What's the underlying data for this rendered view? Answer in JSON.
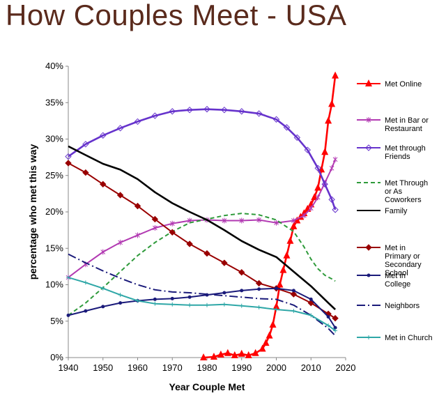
{
  "slide": {
    "title": "How Couples Meet - USA"
  },
  "chart_data": {
    "type": "line",
    "xlabel": "Year Couple Met",
    "ylabel": "percentage who met this way",
    "xlim": [
      1940,
      2020
    ],
    "ylim": [
      0,
      40
    ],
    "xticks": [
      "1940",
      "1950",
      "1960",
      "1970",
      "1980",
      "1990",
      "2000",
      "2010",
      "2020"
    ],
    "yticks": [
      "0%",
      "5%",
      "10%",
      "15%",
      "20%",
      "25%",
      "30%",
      "35%",
      "40%"
    ],
    "grid": false,
    "legend_position": "right",
    "series": [
      {
        "name": "Met Online",
        "color": "#ff0000",
        "line_style": "solid",
        "marker": "triangle",
        "points": [
          [
            1979,
            0
          ],
          [
            1982,
            0.1
          ],
          [
            1984,
            0.4
          ],
          [
            1986,
            0.6
          ],
          [
            1988,
            0.3
          ],
          [
            1990,
            0.5
          ],
          [
            1992,
            0.3
          ],
          [
            1994,
            0.6
          ],
          [
            1996,
            1.2
          ],
          [
            1997,
            2.0
          ],
          [
            1998,
            3.0
          ],
          [
            1999,
            4.5
          ],
          [
            2000,
            7.0
          ],
          [
            2001,
            10.0
          ],
          [
            2002,
            12.0
          ],
          [
            2003,
            14.0
          ],
          [
            2004,
            16.0
          ],
          [
            2005,
            18.0
          ],
          [
            2006,
            18.8
          ],
          [
            2007,
            19.3
          ],
          [
            2008,
            19.8
          ],
          [
            2009,
            20.4
          ],
          [
            2010,
            21.0
          ],
          [
            2011,
            22.0
          ],
          [
            2012,
            23.3
          ],
          [
            2013,
            25.8
          ],
          [
            2014,
            28.2
          ],
          [
            2015,
            32.5
          ],
          [
            2016,
            34.8
          ],
          [
            2017,
            38.7
          ]
        ]
      },
      {
        "name": "Met in Bar or Restaurant",
        "color": "#b23ab2",
        "line_style": "solid",
        "marker": "star",
        "points": [
          [
            1940,
            11.0
          ],
          [
            1945,
            12.8
          ],
          [
            1950,
            14.5
          ],
          [
            1955,
            15.8
          ],
          [
            1960,
            16.8
          ],
          [
            1965,
            17.8
          ],
          [
            1970,
            18.4
          ],
          [
            1975,
            18.8
          ],
          [
            1980,
            18.9
          ],
          [
            1985,
            18.8
          ],
          [
            1990,
            18.8
          ],
          [
            1995,
            18.9
          ],
          [
            2000,
            18.5
          ],
          [
            2005,
            18.8
          ],
          [
            2008,
            19.5
          ],
          [
            2010,
            20.5
          ],
          [
            2012,
            22.0
          ],
          [
            2014,
            24.0
          ],
          [
            2016,
            26.0
          ],
          [
            2017,
            27.2
          ]
        ]
      },
      {
        "name": "Met through Friends",
        "color": "#6633cc",
        "line_style": "solid",
        "marker": "diamond",
        "points": [
          [
            1940,
            27.6
          ],
          [
            1945,
            29.3
          ],
          [
            1950,
            30.5
          ],
          [
            1955,
            31.5
          ],
          [
            1960,
            32.4
          ],
          [
            1965,
            33.2
          ],
          [
            1970,
            33.8
          ],
          [
            1975,
            34.0
          ],
          [
            1980,
            34.1
          ],
          [
            1985,
            34.0
          ],
          [
            1990,
            33.8
          ],
          [
            1995,
            33.5
          ],
          [
            2000,
            32.7
          ],
          [
            2003,
            31.6
          ],
          [
            2006,
            30.2
          ],
          [
            2009,
            28.5
          ],
          [
            2012,
            26.0
          ],
          [
            2014,
            23.8
          ],
          [
            2016,
            21.7
          ],
          [
            2017,
            20.3
          ]
        ]
      },
      {
        "name": "Met Through or As Coworkers",
        "color": "#2e9a3a",
        "line_style": "dashed",
        "marker": "none",
        "points": [
          [
            1940,
            5.8
          ],
          [
            1945,
            7.5
          ],
          [
            1950,
            9.6
          ],
          [
            1955,
            11.8
          ],
          [
            1960,
            14.0
          ],
          [
            1965,
            15.8
          ],
          [
            1970,
            17.3
          ],
          [
            1975,
            18.5
          ],
          [
            1980,
            19.0
          ],
          [
            1985,
            19.5
          ],
          [
            1990,
            19.8
          ],
          [
            1995,
            19.6
          ],
          [
            2000,
            18.9
          ],
          [
            2005,
            17.3
          ],
          [
            2008,
            15.2
          ],
          [
            2010,
            13.5
          ],
          [
            2012,
            12.2
          ],
          [
            2014,
            11.3
          ],
          [
            2016,
            10.8
          ],
          [
            2017,
            10.5
          ]
        ]
      },
      {
        "name": "Family",
        "color": "#000000",
        "line_style": "solid",
        "marker": "none",
        "points": [
          [
            1940,
            29.0
          ],
          [
            1945,
            27.8
          ],
          [
            1950,
            26.6
          ],
          [
            1955,
            25.8
          ],
          [
            1960,
            24.5
          ],
          [
            1965,
            22.7
          ],
          [
            1970,
            21.2
          ],
          [
            1975,
            20.0
          ],
          [
            1980,
            18.9
          ],
          [
            1985,
            17.5
          ],
          [
            1990,
            16.0
          ],
          [
            1995,
            14.8
          ],
          [
            2000,
            13.8
          ],
          [
            2005,
            11.8
          ],
          [
            2010,
            9.8
          ],
          [
            2015,
            7.5
          ],
          [
            2017,
            6.6
          ]
        ]
      },
      {
        "name": "Met in Primary or Secondary School",
        "color": "#990000",
        "line_style": "solid",
        "marker": "diamond",
        "points": [
          [
            1940,
            26.7
          ],
          [
            1945,
            25.4
          ],
          [
            1950,
            23.8
          ],
          [
            1955,
            22.3
          ],
          [
            1960,
            20.8
          ],
          [
            1965,
            19.0
          ],
          [
            1970,
            17.2
          ],
          [
            1975,
            15.6
          ],
          [
            1980,
            14.3
          ],
          [
            1985,
            13.0
          ],
          [
            1990,
            11.7
          ],
          [
            1995,
            10.2
          ],
          [
            2000,
            9.5
          ],
          [
            2005,
            8.7
          ],
          [
            2010,
            7.5
          ],
          [
            2015,
            6.0
          ],
          [
            2017,
            5.4
          ]
        ]
      },
      {
        "name": "Met in College",
        "color": "#1a1a7a",
        "line_style": "solid",
        "marker": "circle",
        "points": [
          [
            1940,
            5.8
          ],
          [
            1945,
            6.4
          ],
          [
            1950,
            7.0
          ],
          [
            1955,
            7.5
          ],
          [
            1960,
            7.8
          ],
          [
            1965,
            8.0
          ],
          [
            1970,
            8.1
          ],
          [
            1975,
            8.3
          ],
          [
            1980,
            8.6
          ],
          [
            1985,
            8.9
          ],
          [
            1990,
            9.2
          ],
          [
            1995,
            9.4
          ],
          [
            2000,
            9.5
          ],
          [
            2005,
            9.2
          ],
          [
            2010,
            8.0
          ],
          [
            2015,
            5.6
          ],
          [
            2017,
            4.1
          ]
        ]
      },
      {
        "name": "Neighbors",
        "color": "#1a1a7a",
        "line_style": "dashdot",
        "marker": "none",
        "points": [
          [
            1940,
            14.2
          ],
          [
            1945,
            13.0
          ],
          [
            1950,
            11.9
          ],
          [
            1955,
            10.9
          ],
          [
            1960,
            10.0
          ],
          [
            1965,
            9.3
          ],
          [
            1970,
            9.0
          ],
          [
            1975,
            8.9
          ],
          [
            1980,
            8.7
          ],
          [
            1985,
            8.5
          ],
          [
            1990,
            8.3
          ],
          [
            1995,
            8.1
          ],
          [
            2000,
            8.0
          ],
          [
            2005,
            7.2
          ],
          [
            2010,
            5.8
          ],
          [
            2015,
            4.0
          ],
          [
            2017,
            3.0
          ]
        ]
      },
      {
        "name": "Met in Church",
        "color": "#2ea7a7",
        "line_style": "solid",
        "marker": "plus",
        "points": [
          [
            1940,
            11.0
          ],
          [
            1945,
            10.3
          ],
          [
            1950,
            9.5
          ],
          [
            1955,
            8.6
          ],
          [
            1960,
            7.8
          ],
          [
            1965,
            7.4
          ],
          [
            1970,
            7.3
          ],
          [
            1975,
            7.2
          ],
          [
            1980,
            7.2
          ],
          [
            1985,
            7.3
          ],
          [
            1990,
            7.1
          ],
          [
            1995,
            6.9
          ],
          [
            2000,
            6.6
          ],
          [
            2005,
            6.4
          ],
          [
            2010,
            5.8
          ],
          [
            2015,
            4.4
          ],
          [
            2017,
            3.7
          ]
        ]
      }
    ]
  }
}
